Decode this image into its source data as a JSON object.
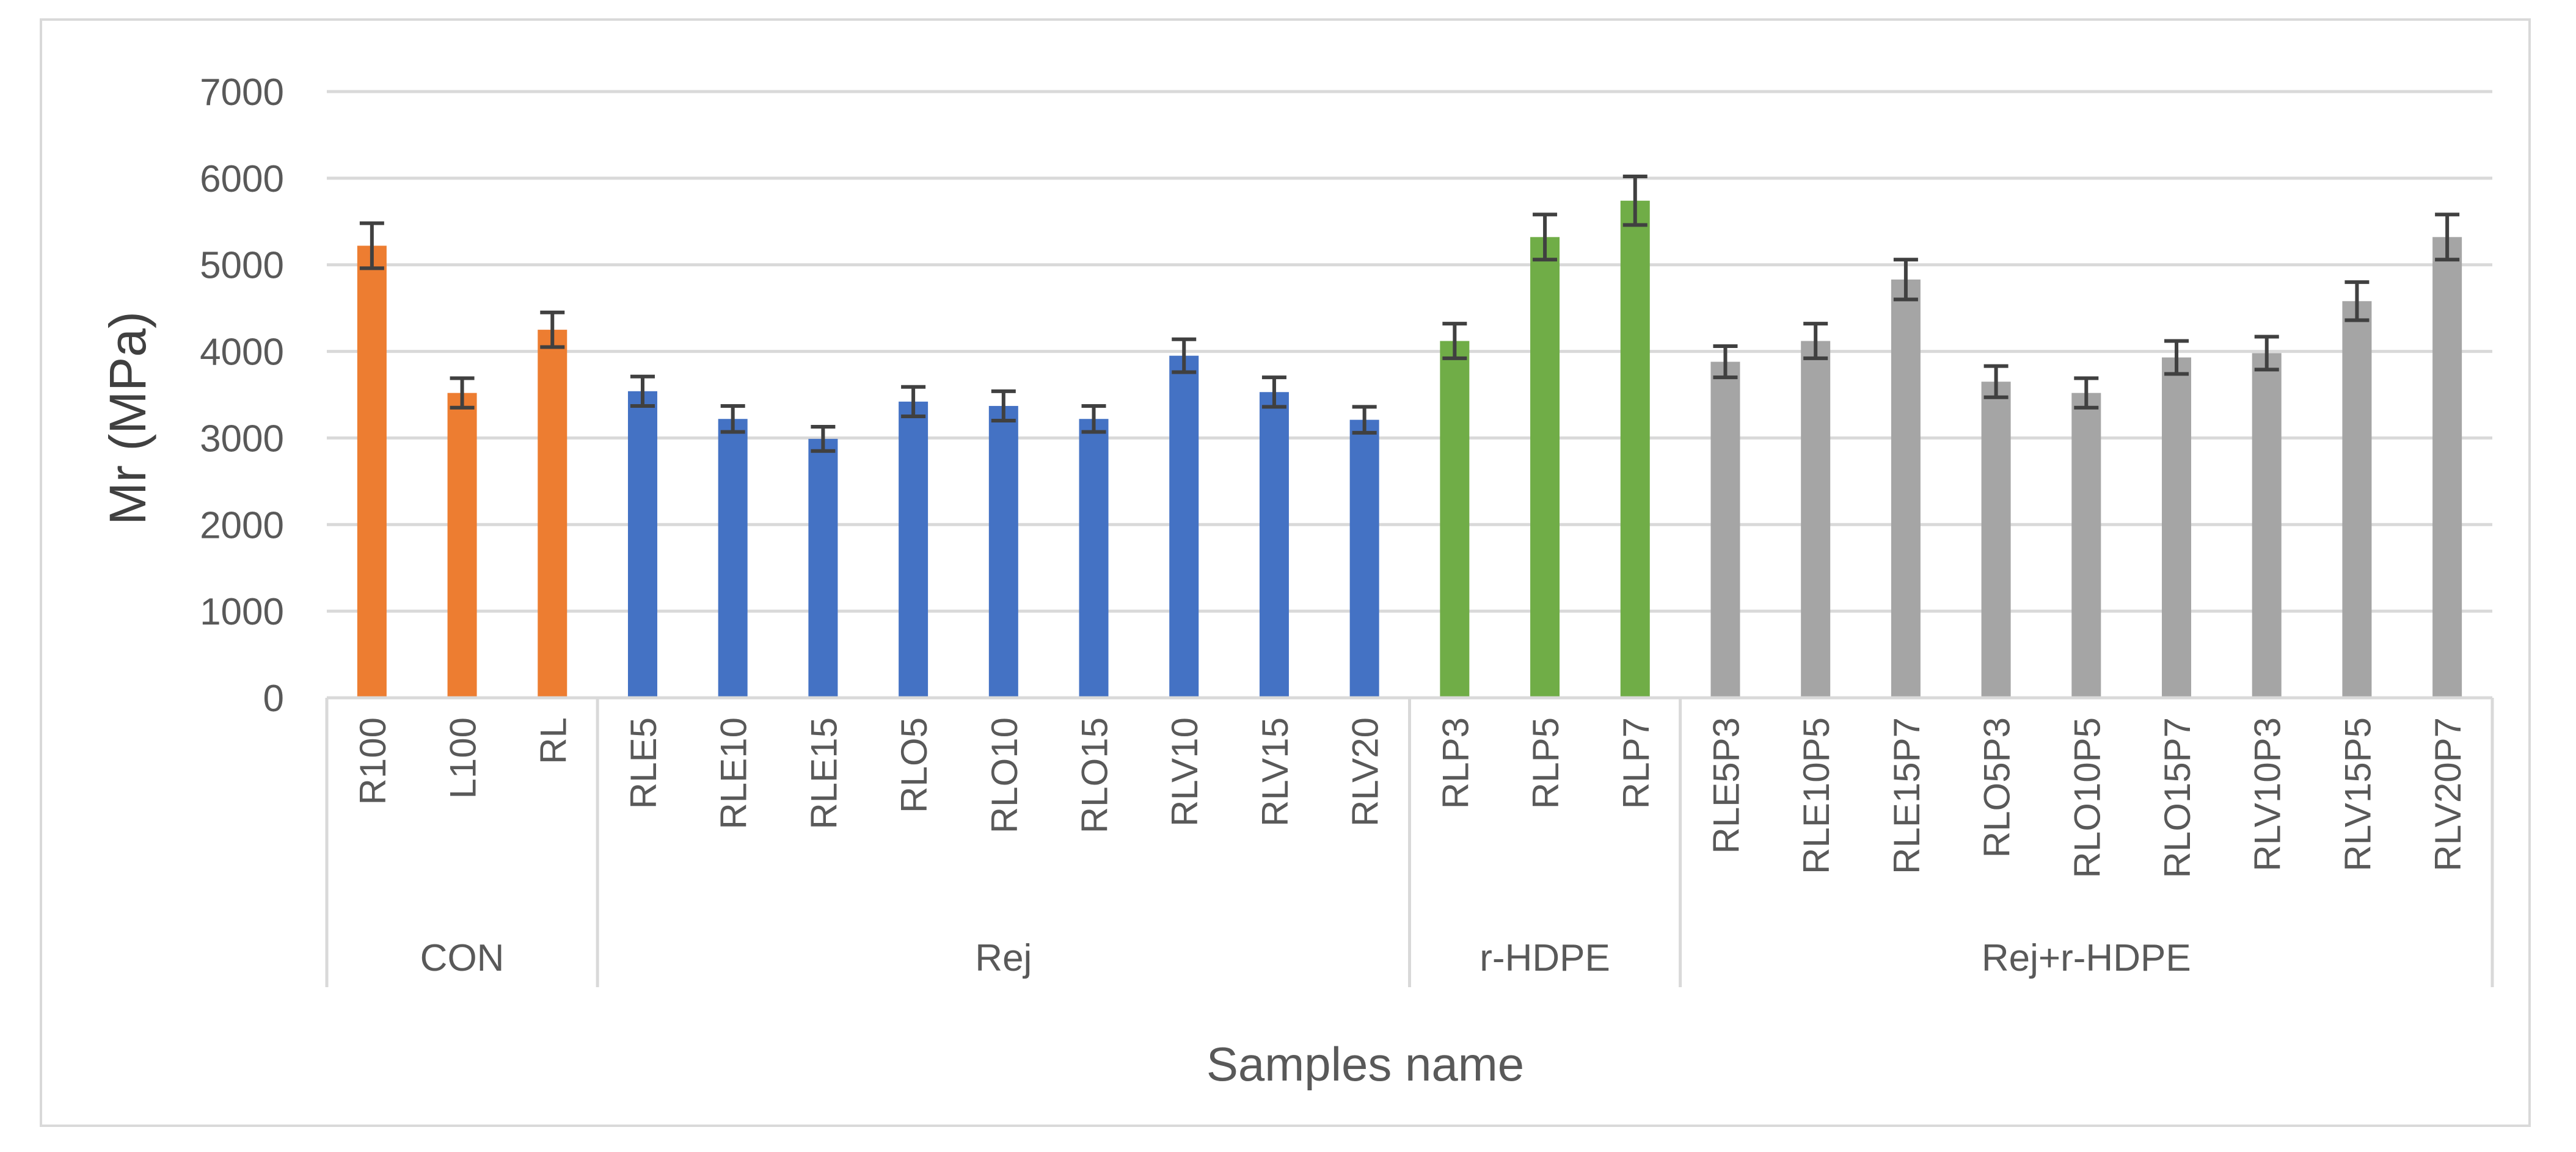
{
  "chart_data": {
    "type": "bar",
    "title": "",
    "xlabel": "Samples name",
    "ylabel": "Mr (MPa)",
    "ylim": [
      0,
      7000
    ],
    "yticks": [
      0,
      1000,
      2000,
      3000,
      4000,
      5000,
      6000,
      7000
    ],
    "grid": true,
    "legend": "none",
    "error_bars": true,
    "groups": [
      {
        "name": "CON",
        "color": "#ED7D31",
        "categories": [
          "R100",
          "L100",
          "RL"
        ],
        "values": [
          5220,
          3520,
          4250
        ],
        "errors": [
          260,
          170,
          200
        ]
      },
      {
        "name": "Rej",
        "color": "#4472C4",
        "categories": [
          "RLE5",
          "RLE10",
          "RLE15",
          "RLO5",
          "RLO10",
          "RLO15",
          "RLV10",
          "RLV15",
          "RLV20"
        ],
        "values": [
          3540,
          3220,
          2990,
          3420,
          3370,
          3220,
          3950,
          3530,
          3210
        ],
        "errors": [
          170,
          150,
          140,
          170,
          170,
          150,
          190,
          170,
          150
        ]
      },
      {
        "name": "r-HDPE",
        "color": "#70AD47",
        "categories": [
          "RLP3",
          "RLP5",
          "RLP7"
        ],
        "values": [
          4120,
          5320,
          5740
        ],
        "errors": [
          200,
          260,
          280
        ]
      },
      {
        "name": "Rej+r-HDPE",
        "color": "#A5A5A5",
        "categories": [
          "RLE5P3",
          "RLE10P5",
          "RLE15P7",
          "RLO5P3",
          "RLO10P5",
          "RLO15P7",
          "RLV10P3",
          "RLV15P5",
          "RLV20P7"
        ],
        "values": [
          3880,
          4120,
          4830,
          3650,
          3520,
          3930,
          3980,
          4580,
          5320
        ],
        "errors": [
          180,
          200,
          230,
          180,
          170,
          190,
          190,
          220,
          260
        ]
      }
    ]
  }
}
